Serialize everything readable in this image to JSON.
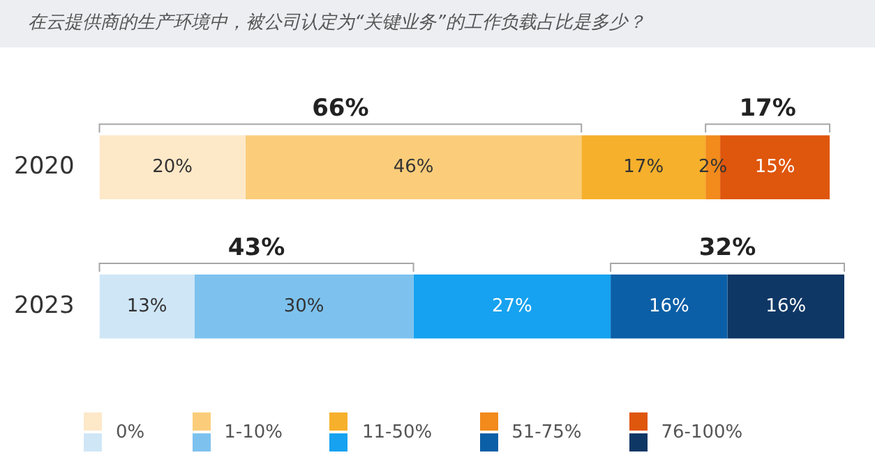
{
  "chart_data": {
    "type": "bar",
    "orientation": "horizontal",
    "stacked": true,
    "title": "在云提供商的生产环境中，被公司认定为“关键业务”的工作负载占比是多少？",
    "categories": [
      "2020",
      "2023"
    ],
    "xlim": [
      0,
      102
    ],
    "tick_labels": "y",
    "legend": "bottom left",
    "series": [
      {
        "name": "0%",
        "colors": [
          "#fde8c8",
          "#cfe6f7"
        ],
        "values": [
          20,
          13
        ],
        "value_labels": [
          "20%",
          "13%"
        ]
      },
      {
        "name": "1-10%",
        "colors": [
          "#fbcd7a",
          "#7dc2ee"
        ],
        "values": [
          46,
          30
        ],
        "value_labels": [
          "46%",
          "30%"
        ]
      },
      {
        "name": "11-50%",
        "colors": [
          "#f6b02c",
          "#16a2f0"
        ],
        "values": [
          17,
          27
        ],
        "value_labels": [
          "17%",
          "27%"
        ]
      },
      {
        "name": "51-75%",
        "colors": [
          "#f28a1c",
          "#0b5fa6"
        ],
        "values": [
          2,
          16
        ],
        "value_labels": [
          "2%",
          "16%"
        ]
      },
      {
        "name": "76-100%",
        "colors": [
          "#df560d",
          "#0f3765"
        ],
        "values": [
          15,
          16
        ],
        "value_labels": [
          "15%",
          "16%"
        ]
      }
    ],
    "annotations": [
      "66%",
      "17%",
      "43%",
      "32%"
    ]
  }
}
